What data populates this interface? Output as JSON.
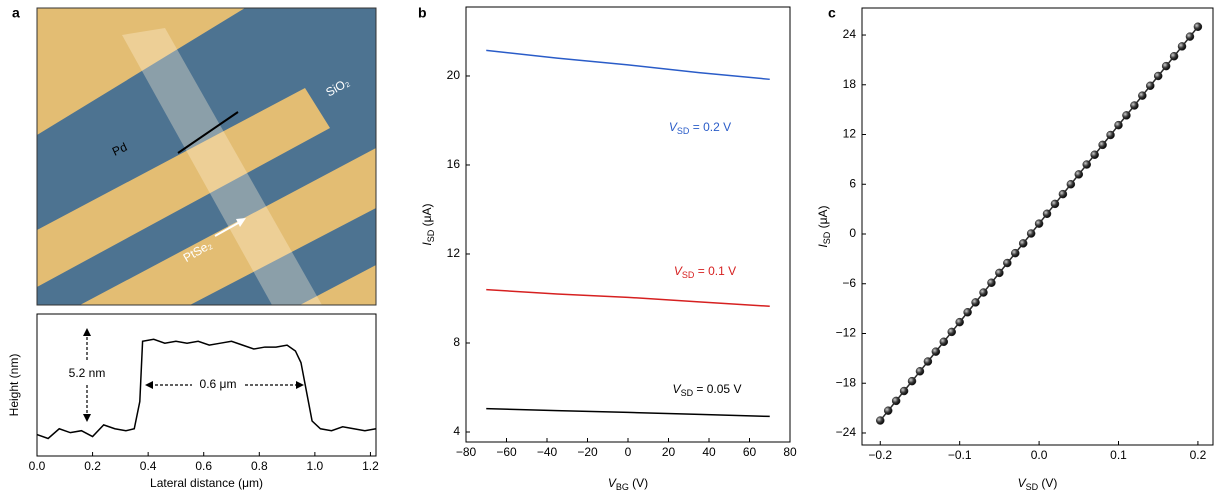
{
  "panel_labels": [
    "a",
    "b",
    "c"
  ],
  "image": {
    "labels": {
      "pd": "Pd",
      "sio2": "SiO₂",
      "ptse2": "PtSe₂"
    }
  },
  "chart_data": [
    {
      "type": "line",
      "xlabel": "Lateral distance (μm)",
      "ylabel": "Height (nm)",
      "xlim": [
        0,
        1.22
      ],
      "ylim": [
        -0.8,
        6.5
      ],
      "xticks": [
        {
          "value": 0,
          "label": "0.0"
        },
        0.2,
        0.4,
        0.6,
        0.8,
        {
          "value": 1,
          "label": "1.0"
        },
        1.2
      ],
      "annotations": [
        "5.2 nm",
        "0.6 μm"
      ],
      "series": [
        {
          "color": "#000000",
          "x": [
            0,
            0.04,
            0.08,
            0.12,
            0.16,
            0.2,
            0.24,
            0.28,
            0.32,
            0.35,
            0.37,
            0.38,
            0.42,
            0.46,
            0.5,
            0.54,
            0.58,
            0.62,
            0.66,
            0.7,
            0.74,
            0.78,
            0.82,
            0.86,
            0.9,
            0.93,
            0.95,
            0.97,
            0.99,
            1.02,
            1.06,
            1.1,
            1.14,
            1.18,
            1.22
          ],
          "values": [
            0.3,
            0.1,
            0.6,
            0.4,
            0.5,
            0.2,
            0.8,
            0.6,
            0.5,
            0.6,
            2.0,
            5.1,
            5.2,
            5.0,
            5.1,
            5.0,
            5.1,
            4.9,
            5.0,
            5.1,
            4.9,
            4.7,
            4.8,
            4.8,
            4.9,
            4.6,
            4.0,
            2.5,
            1.0,
            0.6,
            0.5,
            0.7,
            0.6,
            0.5,
            0.6
          ]
        }
      ]
    },
    {
      "type": "line",
      "xlabel": "VBG (V)",
      "ylabel": "ISD (μA)",
      "xlim": [
        -80,
        80
      ],
      "ylim": [
        3.55,
        23.1
      ],
      "xticks": [
        {
          "value": -80,
          "label": "−80"
        },
        {
          "value": -60,
          "label": "−60"
        },
        {
          "value": -40,
          "label": "−40"
        },
        {
          "value": -20,
          "label": "−20"
        },
        0,
        20,
        40,
        60,
        80
      ],
      "yticks": [
        4,
        8,
        12,
        16,
        20
      ],
      "series": [
        {
          "name": "VSD = 0.2 V",
          "color": "#2a5cc8",
          "x": [
            -70,
            -35,
            0,
            35,
            70
          ],
          "values": [
            21.15,
            20.8,
            20.5,
            20.15,
            19.85
          ]
        },
        {
          "name": "VSD = 0.1 V",
          "color": "#d62020",
          "x": [
            -70,
            -35,
            0,
            35,
            70
          ],
          "values": [
            10.4,
            10.2,
            10.05,
            9.85,
            9.65
          ]
        },
        {
          "name": "VSD = 0.05 V",
          "color": "#000000",
          "x": [
            -70,
            -35,
            0,
            35,
            70
          ],
          "values": [
            5.05,
            4.96,
            4.88,
            4.79,
            4.7
          ]
        }
      ]
    },
    {
      "type": "scatter",
      "xlabel": "VSD (V)",
      "ylabel": "ISD (μA)",
      "xlim": [
        -0.223,
        0.219
      ],
      "ylim": [
        -25.45,
        27.26
      ],
      "xticks": [
        {
          "value": -0.2,
          "label": "−0.2"
        },
        {
          "value": -0.1,
          "label": "−0.1"
        },
        {
          "value": 0,
          "label": "0.0"
        },
        0.1,
        0.2
      ],
      "yticks": [
        {
          "value": -24,
          "label": "−24"
        },
        {
          "value": -18,
          "label": "−18"
        },
        {
          "value": -12,
          "label": "−12"
        },
        {
          "value": -6,
          "label": "−6"
        },
        0,
        6,
        12,
        18,
        24
      ],
      "connect": true,
      "series": [
        {
          "color": "#2b2b2b",
          "x": [
            -0.2,
            -0.19,
            -0.18,
            -0.17,
            -0.16,
            -0.15,
            -0.14,
            -0.13,
            -0.12,
            -0.11,
            -0.1,
            -0.09,
            -0.08,
            -0.07,
            -0.06,
            -0.05,
            -0.04,
            -0.03,
            -0.02,
            -0.01,
            0,
            0.01,
            0.02,
            0.03,
            0.04,
            0.05,
            0.06,
            0.07,
            0.08,
            0.09,
            0.1,
            0.11,
            0.12,
            0.13,
            0.14,
            0.15,
            0.16,
            0.17,
            0.18,
            0.19,
            0.2
          ],
          "values": [
            -22.5,
            -21.31,
            -20.13,
            -18.94,
            -17.75,
            -16.56,
            -15.38,
            -14.19,
            -13.0,
            -11.81,
            -10.63,
            -9.44,
            -8.25,
            -7.06,
            -5.88,
            -4.69,
            -3.5,
            -2.31,
            -1.13,
            0.06,
            1.25,
            2.44,
            3.63,
            4.81,
            6.0,
            7.19,
            8.38,
            9.56,
            10.75,
            11.94,
            13.13,
            14.31,
            15.5,
            16.69,
            17.88,
            19.06,
            20.25,
            21.44,
            22.63,
            23.81,
            25.0
          ]
        }
      ]
    }
  ]
}
